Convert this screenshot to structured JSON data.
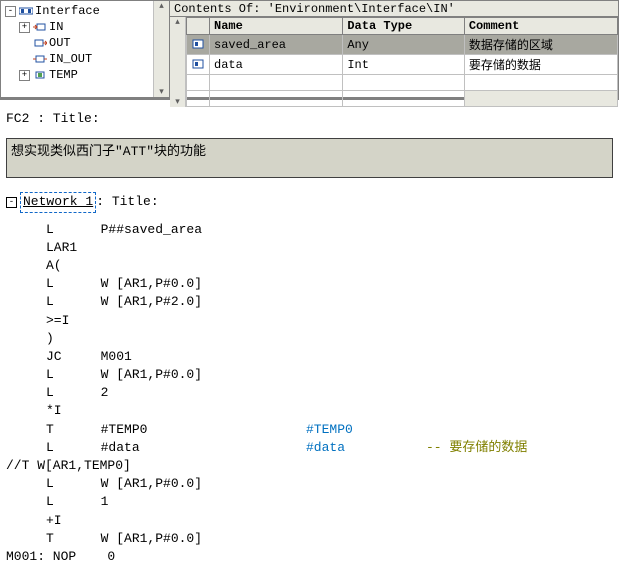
{
  "header": {
    "contents_of": "Contents Of: 'Environment\\Interface\\IN'"
  },
  "tree": {
    "root": "Interface",
    "items": [
      {
        "label": "IN",
        "expandable": true
      },
      {
        "label": "OUT",
        "expandable": false
      },
      {
        "label": "IN_OUT",
        "expandable": false
      },
      {
        "label": "TEMP",
        "expandable": true
      }
    ]
  },
  "table": {
    "columns": {
      "name": "Name",
      "type": "Data Type",
      "comment": "Comment"
    },
    "rows": [
      {
        "name": "saved_area",
        "type": "Any",
        "comment": "数据存储的区域",
        "selected": true
      },
      {
        "name": "data",
        "type": "Int",
        "comment": "要存储的数据",
        "selected": false
      }
    ]
  },
  "code": {
    "fc_label": "FC2 : Title:",
    "fc_comment": "想实现类似西门子\"ATT\"块的功能",
    "network_label": "Network 1",
    "network_title_suffix": ": Title:",
    "lines": [
      {
        "inst": "L      P##saved_area"
      },
      {
        "inst": "LAR1"
      },
      {
        "inst": "A("
      },
      {
        "inst": "L      W [AR1,P#0.0]"
      },
      {
        "inst": "L      W [AR1,P#2.0]"
      },
      {
        "inst": ">=I"
      },
      {
        "inst": ")"
      },
      {
        "inst": "JC     M001"
      },
      {
        "inst": "L      W [AR1,P#0.0]"
      },
      {
        "inst": "L      2"
      },
      {
        "inst": "*I"
      },
      {
        "inst": "T      #TEMP0",
        "op": "#TEMP0"
      },
      {
        "inst": "L      #data",
        "op": "#data",
        "cmt": "-- 要存储的数据"
      }
    ],
    "comment_line": "//T W[AR1,TEMP0]",
    "tail_lines": [
      {
        "inst": "L      W [AR1,P#0.0]"
      },
      {
        "inst": "L      1"
      },
      {
        "inst": "+I"
      },
      {
        "inst": "T      W [AR1,P#0.0]"
      }
    ],
    "end_label": "M001: NOP    0"
  }
}
